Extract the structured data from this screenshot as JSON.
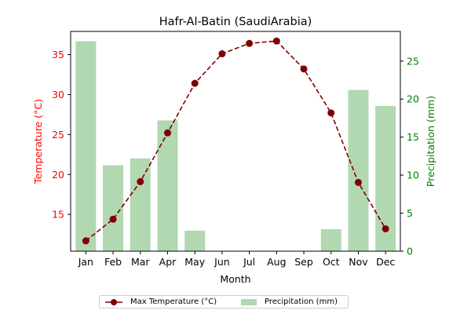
{
  "chart_data": {
    "type": "bar+line",
    "title": "Hafr-Al-Batin (SaudiArabia)",
    "xlabel": "Month",
    "categories": [
      "Jan",
      "Feb",
      "Mar",
      "Apr",
      "May",
      "Jun",
      "Jul",
      "Aug",
      "Sep",
      "Oct",
      "Nov",
      "Dec"
    ],
    "left_axis": {
      "label": "Temperature (°C)",
      "color": "#ff0000",
      "ylim": [
        10.4,
        37.9
      ],
      "ticks": [
        15,
        20,
        25,
        30,
        35
      ]
    },
    "right_axis": {
      "label": "Precipitation (mm)",
      "color": "#008000",
      "ylim": [
        0,
        28.9
      ],
      "ticks": [
        0,
        5,
        10,
        15,
        20,
        25
      ]
    },
    "series": [
      {
        "name": "Max Temperature (°C)",
        "kind": "line",
        "axis": "left",
        "color": "#800000",
        "values": [
          11.7,
          14.4,
          19.1,
          25.2,
          31.4,
          35.1,
          36.4,
          36.7,
          33.2,
          27.7,
          19.0,
          13.2
        ]
      },
      {
        "name": "Precipitation (mm)",
        "kind": "bar",
        "axis": "right",
        "color": "#b1d8b1",
        "values": [
          27.6,
          11.3,
          12.2,
          17.2,
          2.7,
          0,
          0,
          0,
          0,
          2.9,
          21.2,
          19.1
        ]
      }
    ],
    "grid": false,
    "legend_position": "bottom-center"
  }
}
